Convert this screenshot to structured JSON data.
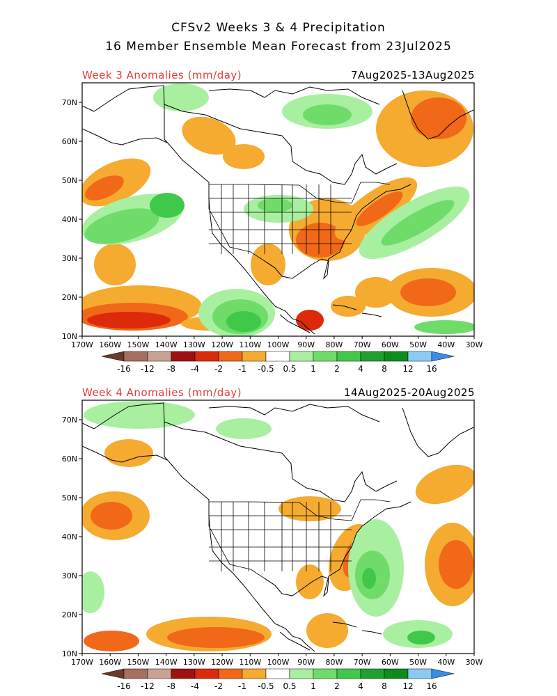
{
  "title": {
    "line1": "CFSv2 Weeks 3 & 4 Precipitation",
    "line2": "16 Member Ensemble Mean Forecast from 23Jul2025"
  },
  "panels": [
    {
      "label": "Week 3 Anomalies (mm/day)",
      "dates": "7Aug2025-13Aug2025"
    },
    {
      "label": "Week 4 Anomalies (mm/day)",
      "dates": "14Aug2025-20Aug2025"
    }
  ],
  "lat_ticks": [
    "10N",
    "20N",
    "30N",
    "40N",
    "50N",
    "60N",
    "70N"
  ],
  "lon_ticks": [
    "170W",
    "160W",
    "150W",
    "140W",
    "130W",
    "120W",
    "110W",
    "100W",
    "90W",
    "80W",
    "70W",
    "60W",
    "50W",
    "40W",
    "30W"
  ],
  "colorbar": {
    "labels": [
      "-16",
      "-12",
      "-8",
      "-4",
      "-2",
      "-1",
      "-0.5",
      "0.5",
      "1",
      "2",
      "4",
      "8",
      "12",
      "16"
    ],
    "colors": [
      "#6b3a2a",
      "#a66f5f",
      "#c9a295",
      "#a01010",
      "#dc2a0a",
      "#f06818",
      "#f5aa30",
      "#ffffff",
      "#a8f0a0",
      "#6fdc6a",
      "#40c84a",
      "#1fa030",
      "#0c8c1c",
      "#8ccaf5",
      "#3c8ce6"
    ]
  }
}
